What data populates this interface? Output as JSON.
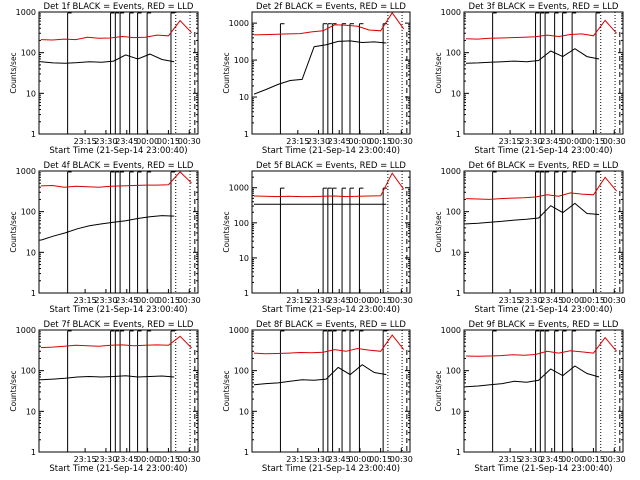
{
  "page": {
    "ylabel": "Counts/sec",
    "xlabel": "Start Time (21-Sep-14 23:00:40)",
    "colors": {
      "events": "#000000",
      "lld": "#dd0000",
      "axes": "#000000"
    }
  },
  "chart_data": [
    {
      "type": "line",
      "title": "Det 1f BLACK = Events, RED = LLD",
      "xlabel": "Start Time (21-Sep-14 23:00:40)",
      "ylabel": "Counts/sec",
      "yscale": "log",
      "ylim": [
        1,
        1000
      ],
      "yticks": [
        "1",
        "10",
        "100",
        "1000"
      ],
      "xticks": [
        "23:15",
        "23:30",
        "23:45",
        "00:00",
        "00:15",
        "00:30"
      ],
      "series": [
        {
          "name": "Events",
          "color": "#000000",
          "values": [
            60,
            56,
            55,
            57,
            60,
            58,
            62,
            88,
            70,
            92,
            68,
            60
          ]
        },
        {
          "name": "LLD",
          "color": "#dd0000",
          "values": [
            210,
            205,
            215,
            210,
            240,
            225,
            230,
            250,
            235,
            240,
            270,
            260,
            610,
            310
          ]
        }
      ]
    },
    {
      "type": "line",
      "title": "Det 2f BLACK = Events, RED = LLD",
      "xlabel": "Start Time (21-Sep-14 23:00:40)",
      "ylabel": "Counts/sec",
      "yscale": "log",
      "ylim": [
        1,
        2000
      ],
      "yticks": [
        "1",
        "10",
        "100",
        "1000"
      ],
      "xticks": [
        "23:15",
        "23:30",
        "23:45",
        "00:00",
        "00:15",
        "00:30"
      ],
      "series": [
        {
          "name": "Events",
          "color": "#000000",
          "values": [
            12,
            16,
            22,
            28,
            30,
            230,
            260,
            320,
            330,
            300,
            310,
            290
          ]
        },
        {
          "name": "LLD",
          "color": "#dd0000",
          "values": [
            480,
            490,
            500,
            510,
            520,
            580,
            620,
            900,
            880,
            820,
            650,
            620,
            1900,
            700
          ]
        }
      ]
    },
    {
      "type": "line",
      "title": "Det 3f BLACK = Events, RED = LLD",
      "xlabel": "Start Time (21-Sep-14 23:00:40)",
      "ylabel": "Counts/sec",
      "yscale": "log",
      "ylim": [
        1,
        1000
      ],
      "yticks": [
        "1",
        "10",
        "100",
        "1000"
      ],
      "xticks": [
        "23:15",
        "23:30",
        "23:45",
        "00:00",
        "00:15",
        "00:30"
      ],
      "series": [
        {
          "name": "Events",
          "color": "#000000",
          "values": [
            55,
            56,
            58,
            60,
            62,
            60,
            64,
            110,
            80,
            125,
            80,
            70
          ]
        },
        {
          "name": "LLD",
          "color": "#dd0000",
          "values": [
            220,
            215,
            225,
            230,
            235,
            240,
            245,
            270,
            250,
            280,
            290,
            260,
            620,
            300
          ]
        }
      ]
    },
    {
      "type": "line",
      "title": "Det 4f BLACK = Events, RED = LLD",
      "xlabel": "Start Time (21-Sep-14 23:00:40)",
      "ylabel": "Counts/sec",
      "yscale": "log",
      "ylim": [
        1,
        1000
      ],
      "yticks": [
        "1",
        "10",
        "100",
        "1000"
      ],
      "xticks": [
        "23:15",
        "23:30",
        "23:45",
        "00:00",
        "00:15",
        "00:30"
      ],
      "series": [
        {
          "name": "Events",
          "color": "#000000",
          "values": [
            20,
            25,
            30,
            38,
            45,
            50,
            55,
            60,
            68,
            75,
            80,
            78
          ]
        },
        {
          "name": "LLD",
          "color": "#dd0000",
          "values": [
            430,
            440,
            400,
            420,
            410,
            400,
            420,
            430,
            440,
            450,
            450,
            460,
            950,
            500
          ]
        }
      ]
    },
    {
      "type": "line",
      "title": "Det 5f BLACK = Events, RED = LLD",
      "xlabel": "Start Time (21-Sep-14 23:00:40)",
      "ylabel": "Counts/sec",
      "yscale": "log",
      "ylim": [
        1,
        3000
      ],
      "yticks": [
        "1",
        "10",
        "100",
        "1000"
      ],
      "xticks": [
        "23:15",
        "23:30",
        "23:45",
        "00:00",
        "00:15",
        "00:30"
      ],
      "series": [
        {
          "name": "Events",
          "color": "#000000",
          "values": [
            340,
            340,
            340,
            340,
            340,
            340,
            340,
            340,
            340,
            340,
            340,
            340
          ]
        },
        {
          "name": "LLD",
          "color": "#dd0000",
          "values": [
            580,
            570,
            560,
            570,
            560,
            560,
            570,
            580,
            560,
            570,
            580,
            590,
            2600,
            900
          ]
        }
      ]
    },
    {
      "type": "line",
      "title": "Det 6f BLACK = Events, RED = LLD",
      "xlabel": "Start Time (21-Sep-14 23:00:40)",
      "ylabel": "Counts/sec",
      "yscale": "log",
      "ylim": [
        1,
        1000
      ],
      "yticks": [
        "1",
        "10",
        "100",
        "1000"
      ],
      "xticks": [
        "23:15",
        "23:30",
        "23:45",
        "00:00",
        "00:15",
        "00:30"
      ],
      "series": [
        {
          "name": "Events",
          "color": "#000000",
          "values": [
            50,
            52,
            55,
            58,
            62,
            65,
            70,
            140,
            95,
            160,
            90,
            85
          ]
        },
        {
          "name": "LLD",
          "color": "#dd0000",
          "values": [
            210,
            205,
            200,
            210,
            215,
            220,
            230,
            260,
            240,
            290,
            270,
            260,
            700,
            320
          ]
        }
      ]
    },
    {
      "type": "line",
      "title": "Det 7f BLACK = Events, RED = LLD",
      "xlabel": "Start Time (21-Sep-14 23:00:40)",
      "ylabel": "Counts/sec",
      "yscale": "log",
      "ylim": [
        1,
        1000
      ],
      "yticks": [
        "1",
        "10",
        "100",
        "1000"
      ],
      "xticks": [
        "23:15",
        "23:30",
        "23:45",
        "00:00",
        "00:15",
        "00:30"
      ],
      "series": [
        {
          "name": "Events",
          "color": "#000000",
          "values": [
            60,
            62,
            65,
            70,
            72,
            70,
            72,
            75,
            70,
            72,
            74,
            70
          ]
        },
        {
          "name": "LLD",
          "color": "#dd0000",
          "values": [
            370,
            380,
            400,
            420,
            410,
            400,
            420,
            430,
            410,
            420,
            430,
            420,
            700,
            360
          ]
        }
      ]
    },
    {
      "type": "line",
      "title": "Det 8f BLACK = Events, RED = LLD",
      "xlabel": "Start Time (21-Sep-14 23:00:40)",
      "ylabel": "Counts/sec",
      "yscale": "log",
      "ylim": [
        1,
        1000
      ],
      "yticks": [
        "1",
        "10",
        "100",
        "1000"
      ],
      "xticks": [
        "23:15",
        "23:30",
        "23:45",
        "00:00",
        "00:15",
        "00:30"
      ],
      "series": [
        {
          "name": "Events",
          "color": "#000000",
          "values": [
            45,
            48,
            50,
            55,
            60,
            58,
            62,
            120,
            80,
            140,
            90,
            80
          ]
        },
        {
          "name": "LLD",
          "color": "#dd0000",
          "values": [
            270,
            260,
            265,
            270,
            280,
            275,
            285,
            330,
            300,
            350,
            320,
            300,
            750,
            330
          ]
        }
      ]
    },
    {
      "type": "line",
      "title": "Det 9f BLACK = Events, RED = LLD",
      "xlabel": "Start Time (21-Sep-14 23:00:40)",
      "ylabel": "Counts/sec",
      "yscale": "log",
      "ylim": [
        1,
        1000
      ],
      "yticks": [
        "1",
        "10",
        "100",
        "1000"
      ],
      "xticks": [
        "23:15",
        "23:30",
        "23:45",
        "00:00",
        "00:15",
        "00:30"
      ],
      "series": [
        {
          "name": "Events",
          "color": "#000000",
          "values": [
            40,
            42,
            45,
            48,
            55,
            52,
            58,
            110,
            75,
            130,
            85,
            70
          ]
        },
        {
          "name": "LLD",
          "color": "#dd0000",
          "values": [
            230,
            225,
            230,
            235,
            245,
            240,
            250,
            300,
            270,
            310,
            290,
            270,
            650,
            300
          ]
        }
      ]
    }
  ]
}
